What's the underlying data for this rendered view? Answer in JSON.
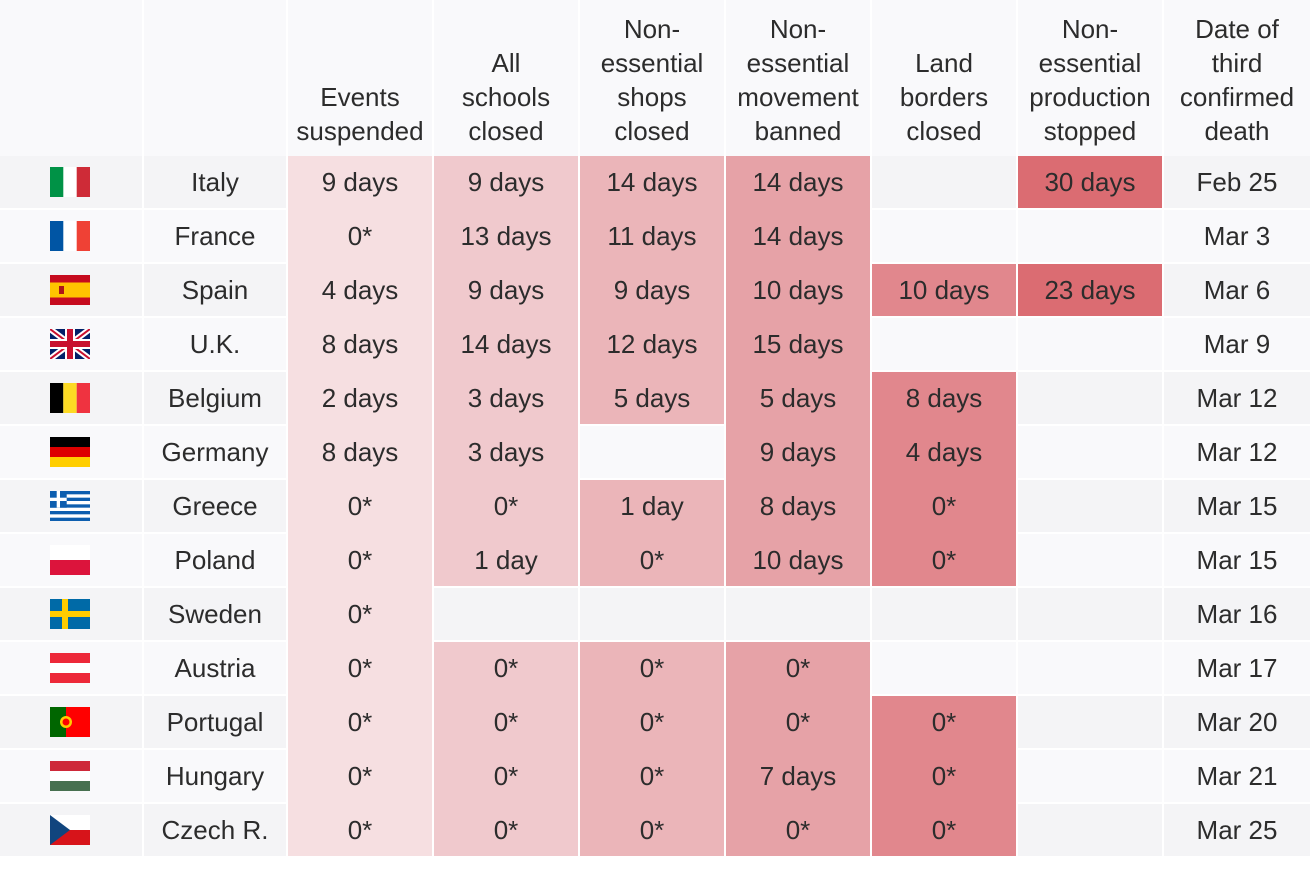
{
  "chart_data": {
    "type": "table",
    "columns": [
      "",
      "",
      "Events\nsuspended",
      "All\nschools\nclosed",
      "Non-\nessential\nshops\nclosed",
      "Non-\nessential\nmovement\nbanned",
      "Land\nborders\nclosed",
      "Non-\nessential\nproduction\nstopped",
      "Date of\nthird\nconfirmed\ndeath"
    ],
    "measure_columns": [
      "Events suspended",
      "All schools closed",
      "Non-essential shops closed",
      "Non-essential movement banned",
      "Land borders closed",
      "Non-essential production stopped"
    ],
    "rows": [
      {
        "country": "Italy",
        "flag": "italy-flag",
        "values": [
          "9 days",
          "9 days",
          "14 days",
          "14 days",
          "",
          "30 days"
        ],
        "date": "Feb 25"
      },
      {
        "country": "France",
        "flag": "france-flag",
        "values": [
          "0*",
          "13 days",
          "11 days",
          "14 days",
          "",
          ""
        ],
        "date": "Mar 3"
      },
      {
        "country": "Spain",
        "flag": "spain-flag",
        "values": [
          "4 days",
          "9 days",
          "9 days",
          "10 days",
          "10 days",
          "23 days"
        ],
        "date": "Mar 6"
      },
      {
        "country": "U.K.",
        "flag": "uk-flag",
        "values": [
          "8 days",
          "14 days",
          "12 days",
          "15 days",
          "",
          ""
        ],
        "date": "Mar 9"
      },
      {
        "country": "Belgium",
        "flag": "belgium-flag",
        "values": [
          "2 days",
          "3 days",
          "5 days",
          "5 days",
          "8 days",
          ""
        ],
        "date": "Mar 12"
      },
      {
        "country": "Germany",
        "flag": "germany-flag",
        "values": [
          "8 days",
          "3 days",
          "",
          "9 days",
          "4 days",
          ""
        ],
        "date": "Mar 12"
      },
      {
        "country": "Greece",
        "flag": "greece-flag",
        "values": [
          "0*",
          "0*",
          "1 day",
          "8 days",
          "0*",
          ""
        ],
        "date": "Mar 15"
      },
      {
        "country": "Poland",
        "flag": "poland-flag",
        "values": [
          "0*",
          "1 day",
          "0*",
          "10 days",
          "0*",
          ""
        ],
        "date": "Mar 15"
      },
      {
        "country": "Sweden",
        "flag": "sweden-flag",
        "values": [
          "0*",
          "",
          "",
          "",
          "",
          ""
        ],
        "date": "Mar 16"
      },
      {
        "country": "Austria",
        "flag": "austria-flag",
        "values": [
          "0*",
          "0*",
          "0*",
          "0*",
          "",
          ""
        ],
        "date": "Mar 17"
      },
      {
        "country": "Portugal",
        "flag": "portugal-flag",
        "values": [
          "0*",
          "0*",
          "0*",
          "0*",
          "0*",
          ""
        ],
        "date": "Mar 20"
      },
      {
        "country": "Hungary",
        "flag": "hungary-flag",
        "values": [
          "0*",
          "0*",
          "0*",
          "7 days",
          "0*",
          ""
        ],
        "date": "Mar 21"
      },
      {
        "country": "Czech R.",
        "flag": "czech-flag",
        "values": [
          "0*",
          "0*",
          "0*",
          "0*",
          "0*",
          ""
        ],
        "date": "Mar 25"
      }
    ],
    "column_fill_colors": [
      "#f6dfe1",
      "#f0c9cd",
      "#ebb5b9",
      "#e6a2a7",
      "#e1878d",
      "#db6c72"
    ],
    "row_stripe_colors": [
      "#f4f4f6",
      "#f9f9fb"
    ]
  }
}
